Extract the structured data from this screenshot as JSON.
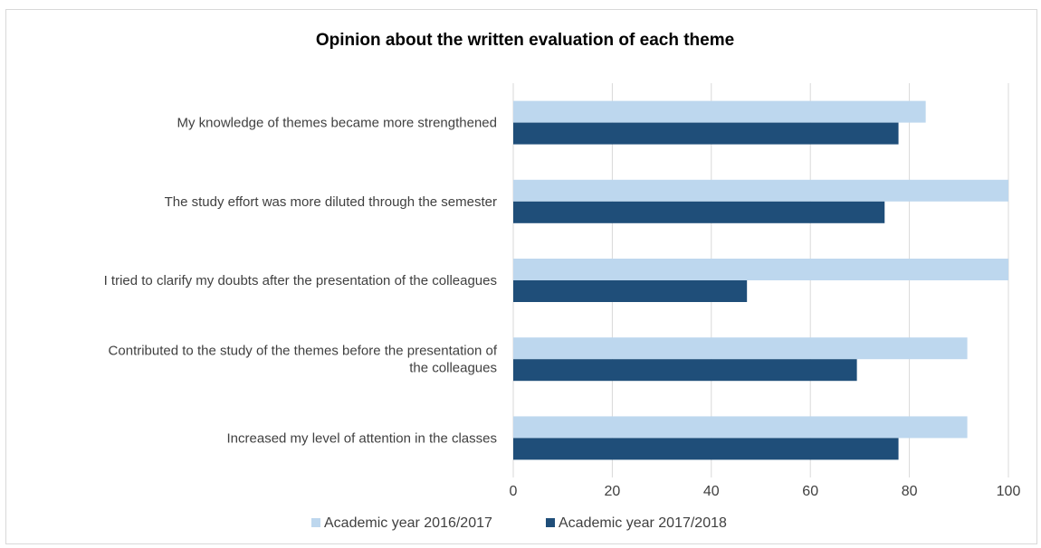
{
  "chart_data": {
    "type": "bar",
    "orientation": "horizontal",
    "title": "Opinion about the written evaluation of each theme",
    "xlabel": "",
    "ylabel": "",
    "categories": [
      [
        "My knowledge of themes became more strengthened"
      ],
      [
        "The study effort was more diluted through the semester"
      ],
      [
        "I tried to clarify my doubts after the presentation of the colleagues"
      ],
      [
        "Contributed to the study of the themes before the presentation of",
        "the colleagues"
      ],
      [
        "Increased my level of attention in the classes"
      ]
    ],
    "series": [
      {
        "name": "Academic year 2016/2017",
        "color": "#bdd7ee",
        "values": [
          83.3,
          100,
          100,
          91.7,
          91.7
        ]
      },
      {
        "name": "Academic year 2017/2018",
        "color": "#1f4e79",
        "values": [
          77.8,
          75,
          47.2,
          69.4,
          77.8
        ]
      }
    ],
    "xlim": [
      0,
      100
    ],
    "xticks": [
      0,
      20,
      40,
      60,
      80,
      100
    ],
    "grid": true,
    "legend": "bottom"
  }
}
